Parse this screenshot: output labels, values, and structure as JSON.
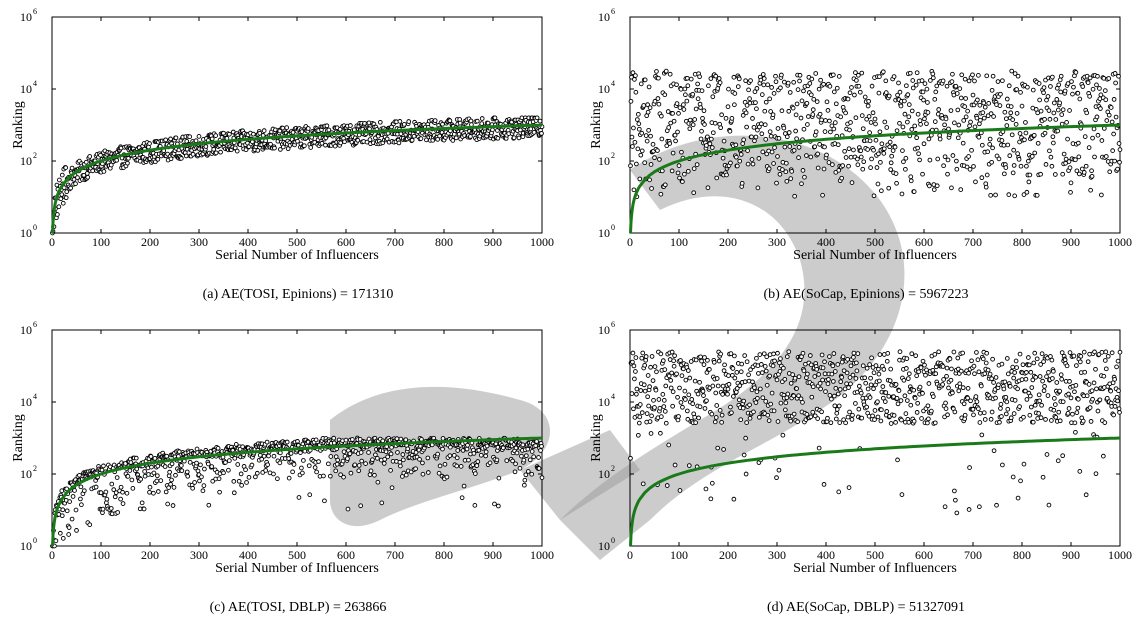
{
  "chart_data": [
    {
      "type": "scatter",
      "caption": "(a)  AE(TOSI, Epinions) = 171310",
      "xlabel": "Serial Number of Influencers",
      "ylabel": "Ranking",
      "xlim": [
        0,
        1000
      ],
      "ylim_log10": [
        0,
        6
      ],
      "xticks": [
        "0",
        "100",
        "200",
        "300",
        "400",
        "500",
        "600",
        "700",
        "800",
        "900",
        "1000"
      ],
      "yticks": [
        {
          "base": "10",
          "exp": "0"
        },
        {
          "base": "10",
          "exp": "2"
        },
        {
          "base": "10",
          "exp": "4"
        },
        {
          "base": "10",
          "exp": "6"
        }
      ],
      "series": [
        {
          "kind": "points",
          "log10_ranking_range": "scatter clustered tightly around the reference curve, from ~10^0 at x=0 rising to ~10^3 at x=1000"
        },
        {
          "kind": "reference_line",
          "equation": "ranking = x",
          "color": "#1a7a1a"
        }
      ],
      "scatter_model": {
        "center": "log10(x)",
        "spread_low": 0.35,
        "spread_high": 0.25,
        "min": 0,
        "max": 3.2
      }
    },
    {
      "type": "scatter",
      "caption": "(b)  AE(SoCap, Epinions) = 5967223",
      "xlabel": "Serial Number of Influencers",
      "ylabel": "Ranking",
      "xlim": [
        0,
        1000
      ],
      "ylim_log10": [
        0,
        6
      ],
      "xticks": [
        "0",
        "100",
        "200",
        "300",
        "400",
        "500",
        "600",
        "700",
        "800",
        "900",
        "1000"
      ],
      "yticks": [
        {
          "base": "10",
          "exp": "0"
        },
        {
          "base": "10",
          "exp": "2"
        },
        {
          "base": "10",
          "exp": "4"
        },
        {
          "base": "10",
          "exp": "6"
        }
      ],
      "series": [
        {
          "kind": "points",
          "log10_ranking_range": "widely scattered between ~10^1.5 and ~10^4.5 across all x"
        },
        {
          "kind": "reference_line",
          "equation": "ranking = x",
          "color": "#1a7a1a"
        }
      ],
      "scatter_model": {
        "center": "flat",
        "low": 1.6,
        "high": 4.5,
        "min": 1.0,
        "max": 4.6
      }
    },
    {
      "type": "scatter",
      "caption": "(c)  AE(TOSI, DBLP) = 263866",
      "xlabel": "Serial Number of Influencers",
      "ylabel": "Ranking",
      "xlim": [
        0,
        1000
      ],
      "ylim_log10": [
        0,
        6
      ],
      "xticks": [
        "0",
        "100",
        "200",
        "300",
        "400",
        "500",
        "600",
        "700",
        "800",
        "900",
        "1000"
      ],
      "yticks": [
        {
          "base": "10",
          "exp": "0"
        },
        {
          "base": "10",
          "exp": "2"
        },
        {
          "base": "10",
          "exp": "4"
        },
        {
          "base": "10",
          "exp": "6"
        }
      ],
      "series": [
        {
          "kind": "points",
          "log10_ranking_range": "dense band near ~10^2.8–10^3, with scatter down to ~10^1 for small x"
        },
        {
          "kind": "reference_line",
          "equation": "ranking = x",
          "color": "#1a7a1a"
        }
      ],
      "scatter_model": {
        "center": "dblp",
        "cap": 2.95,
        "min": 0,
        "max": 3.05
      }
    },
    {
      "type": "scatter",
      "caption": "(d)  AE(SoCap, DBLP) = 51327091",
      "xlabel": "Serial Number of Influencers",
      "ylabel": "Ranking",
      "xlim": [
        0,
        1000
      ],
      "ylim_log10": [
        0,
        6
      ],
      "xticks": [
        "0",
        "100",
        "200",
        "300",
        "400",
        "500",
        "600",
        "700",
        "800",
        "900",
        "1000"
      ],
      "yticks": [
        {
          "base": "10",
          "exp": "0"
        },
        {
          "base": "10",
          "exp": "2"
        },
        {
          "base": "10",
          "exp": "4"
        },
        {
          "base": "10",
          "exp": "6"
        }
      ],
      "series": [
        {
          "kind": "points",
          "log10_ranking_range": "mostly between ~10^3.5 and ~10^5.4, with sparse outliers down to ~10^1"
        },
        {
          "kind": "reference_line",
          "equation": "ranking = x",
          "color": "#1a7a1a"
        }
      ],
      "scatter_model": {
        "center": "flat",
        "low": 3.4,
        "high": 5.4,
        "min": 0.8,
        "max": 5.5
      }
    }
  ],
  "colors": {
    "axis": "#000000",
    "reference_line": "#1a7a1a",
    "marker_edge": "#000000",
    "watermark": "#9a9a9a"
  }
}
